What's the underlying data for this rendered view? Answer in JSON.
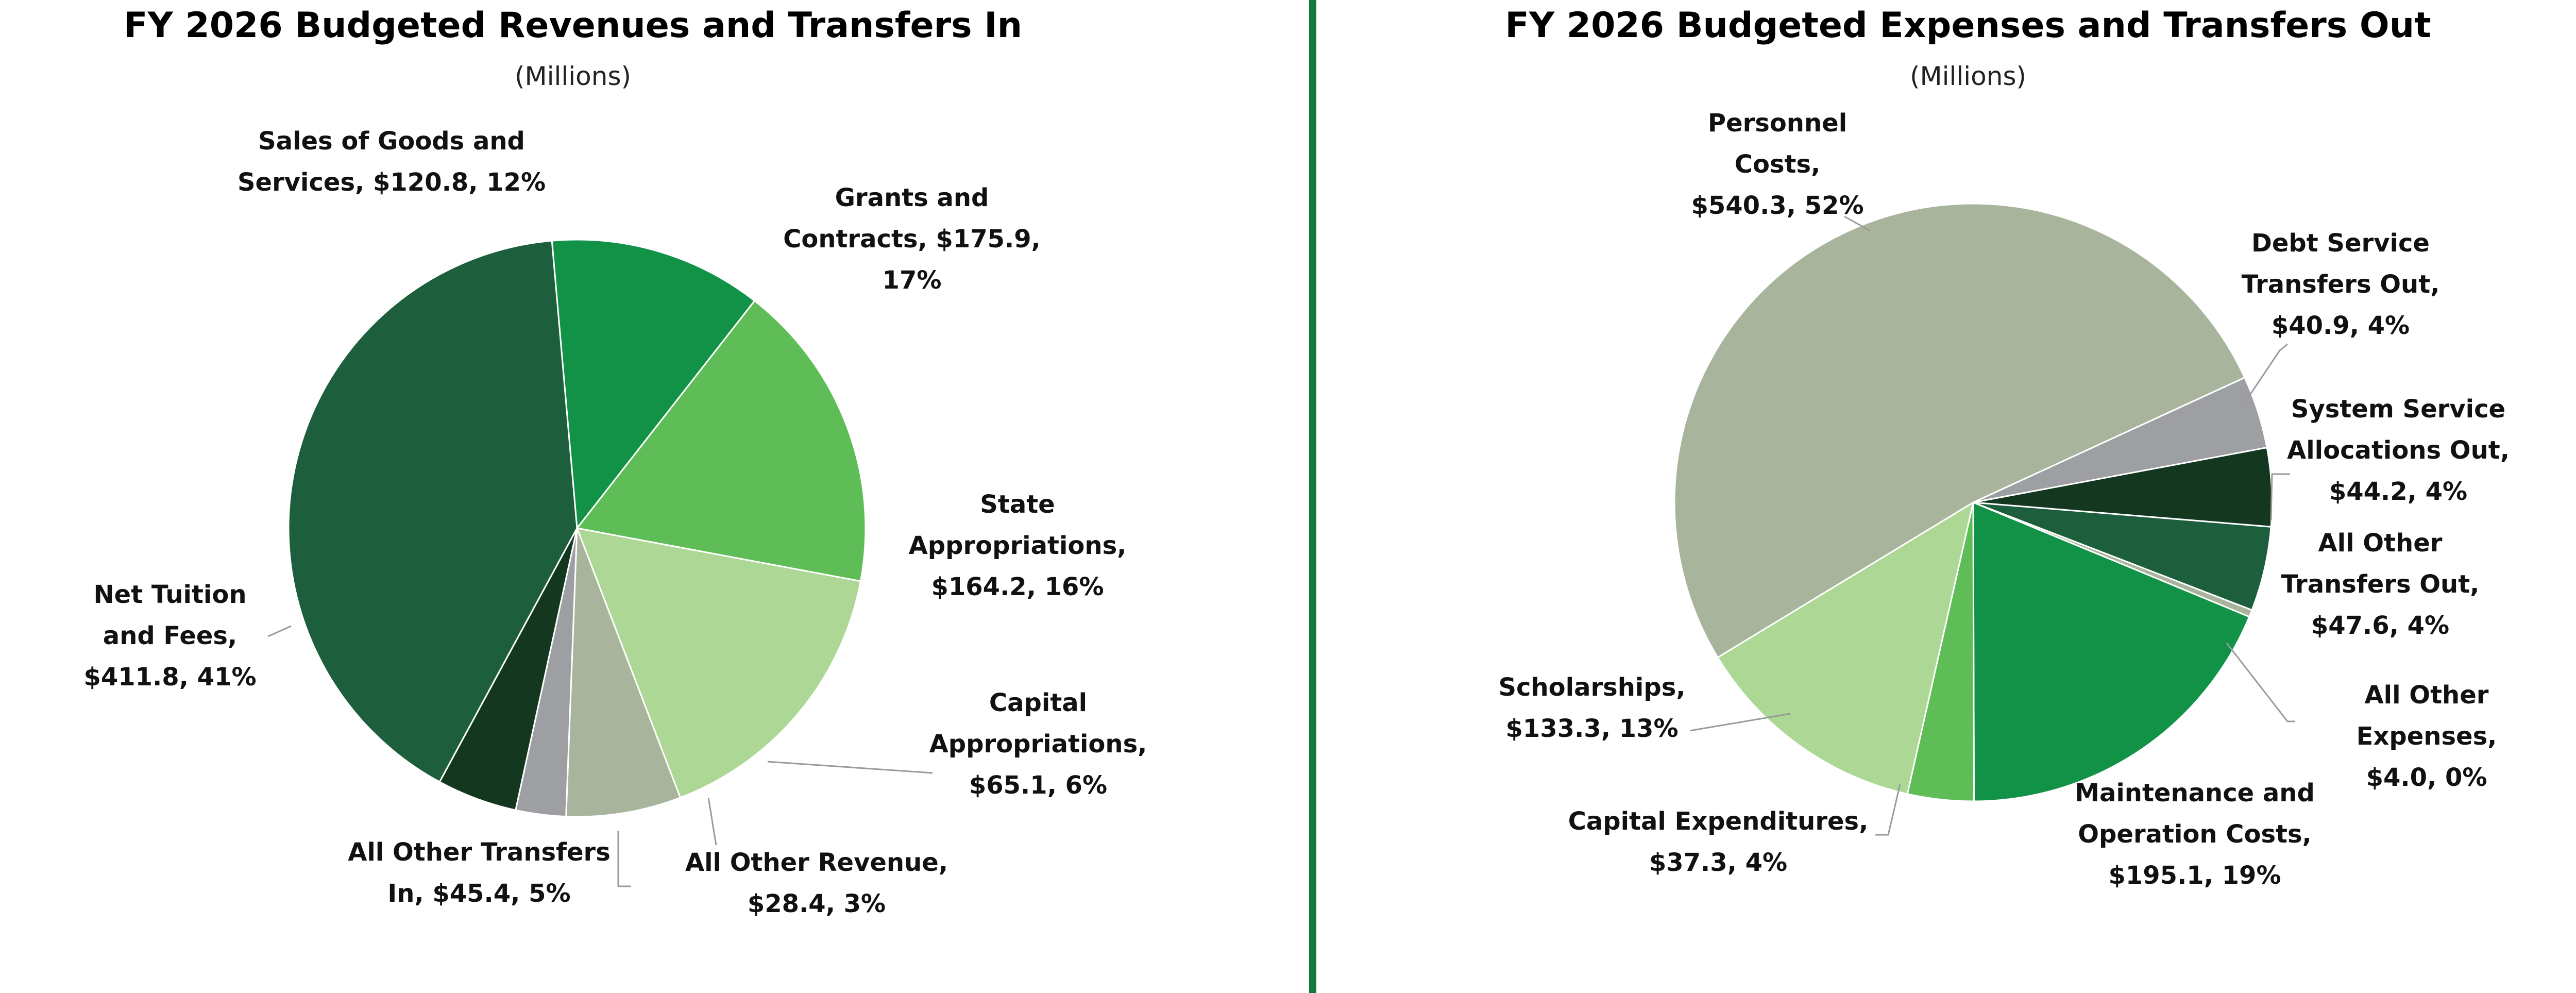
{
  "chart_data": [
    {
      "type": "pie",
      "title": "FY 2026 Budgeted Revenues and Transfers In",
      "subtitle": "(Millions)",
      "slices": [
        {
          "name": "Sales of Goods and Services",
          "value": 120.8,
          "percent": "12%",
          "label": [
            "Sales of Goods and",
            "Services, $120.8, 12%"
          ],
          "color": "#119247"
        },
        {
          "name": "Grants and Contracts",
          "value": 175.9,
          "percent": "17%",
          "label": [
            "Grants and",
            "Contracts, $175.9,",
            "17%"
          ],
          "color": "#5fbd57"
        },
        {
          "name": "State Appropriations",
          "value": 164.2,
          "percent": "16%",
          "label": [
            "State",
            "Appropriations,",
            "$164.2, 16%"
          ],
          "color": "#acd795"
        },
        {
          "name": "Capital Appropriations",
          "value": 65.1,
          "percent": "6%",
          "label": [
            "Capital",
            "Appropriations,",
            "$65.1, 6%"
          ],
          "color": "#a8b49c"
        },
        {
          "name": "All Other Revenue",
          "value": 28.4,
          "percent": "3%",
          "label": [
            "All Other Revenue,",
            "$28.4, 3%"
          ],
          "color": "#9d9fa2"
        },
        {
          "name": "All Other Transfers In",
          "value": 45.4,
          "percent": "5%",
          "label": [
            "All Other Transfers",
            "In, $45.4, 5%"
          ],
          "color": "#13381f"
        },
        {
          "name": "Net Tuition and Fees",
          "value": 411.8,
          "percent": "41%",
          "label": [
            "Net Tuition",
            "and Fees,",
            "$411.8, 41%"
          ],
          "color": "#1d5e3c"
        }
      ]
    },
    {
      "type": "pie",
      "title": "FY 2026 Budgeted Expenses and Transfers Out",
      "subtitle": "(Millions)",
      "slices": [
        {
          "name": "Debt Service Transfers Out",
          "value": 40.9,
          "percent": "4%",
          "label": [
            "Debt Service",
            "Transfers Out,",
            "$40.9, 4%"
          ],
          "color": "#9d9fa2"
        },
        {
          "name": "System Service Allocations Out",
          "value": 44.2,
          "percent": "4%",
          "label": [
            "System Service",
            "Allocations Out,",
            "$44.2, 4%"
          ],
          "color": "#13381f"
        },
        {
          "name": "All Other Transfers Out",
          "value": 47.6,
          "percent": "4%",
          "label": [
            "All Other",
            "Transfers Out,",
            "$47.6, 4%"
          ],
          "color": "#1d5e3c"
        },
        {
          "name": "All Other Expenses",
          "value": 4.0,
          "percent": "0%",
          "label": [
            "All Other",
            "Expenses,",
            "$4.0, 0%"
          ],
          "color": "#a8b49c"
        },
        {
          "name": "Maintenance and Operation Costs",
          "value": 195.1,
          "percent": "19%",
          "label": [
            "Maintenance and",
            "Operation Costs,",
            "$195.1, 19%"
          ],
          "color": "#119247"
        },
        {
          "name": "Capital Expenditures",
          "value": 37.3,
          "percent": "4%",
          "label": [
            "Capital Expenditures,",
            "$37.3, 4%"
          ],
          "color": "#5fbd57"
        },
        {
          "name": "Scholarships",
          "value": 133.3,
          "percent": "13%",
          "label": [
            "Scholarships,",
            "$133.3, 13%"
          ],
          "color": "#acd795"
        },
        {
          "name": "Personnel Costs",
          "value": 540.3,
          "percent": "52%",
          "label": [
            "Personnel",
            "Costs,",
            "$540.3, 52%"
          ],
          "color": "#a8b49c"
        }
      ]
    }
  ]
}
